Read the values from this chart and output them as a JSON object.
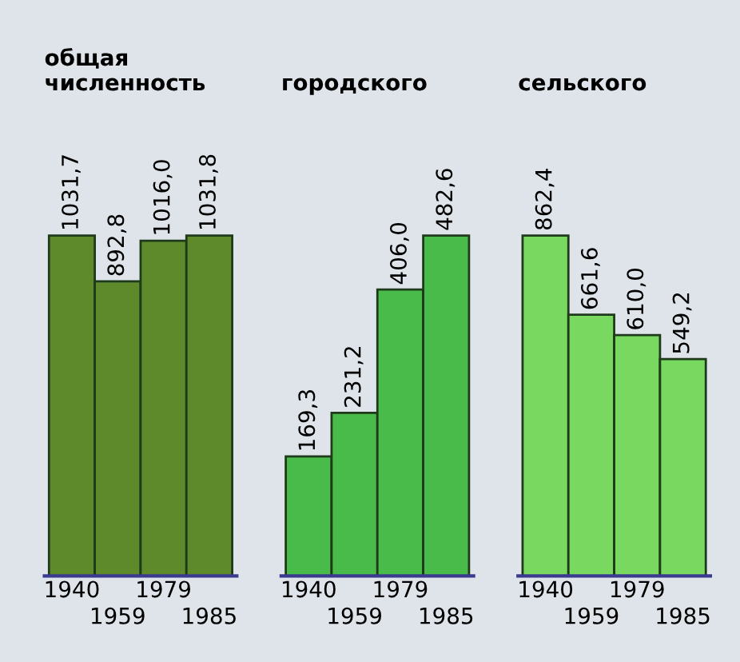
{
  "chart_data": [
    {
      "type": "bar",
      "title": "общая\nчисленность",
      "categories": [
        "1940",
        "1959",
        "1979",
        "1985"
      ],
      "values": [
        1031.7,
        892.8,
        1016.0,
        1031.8
      ],
      "value_labels": [
        "1031,7",
        "892,8",
        "1016,0",
        "1031,8"
      ],
      "color": "#5e8a2c"
    },
    {
      "type": "bar",
      "title": "городского",
      "categories": [
        "1940",
        "1959",
        "1979",
        "1985"
      ],
      "values": [
        169.3,
        231.2,
        406.0,
        482.6
      ],
      "value_labels": [
        "169,3",
        "231,2",
        "406,0",
        "482,6"
      ],
      "color": "#49bb4a"
    },
    {
      "type": "bar",
      "title": "сельского",
      "categories": [
        "1940",
        "1959",
        "1979",
        "1985"
      ],
      "values": [
        862.4,
        661.6,
        610.0,
        549.2
      ],
      "value_labels": [
        "862,4",
        "661,6",
        "610,0",
        "549,2"
      ],
      "color": "#78d860"
    }
  ]
}
